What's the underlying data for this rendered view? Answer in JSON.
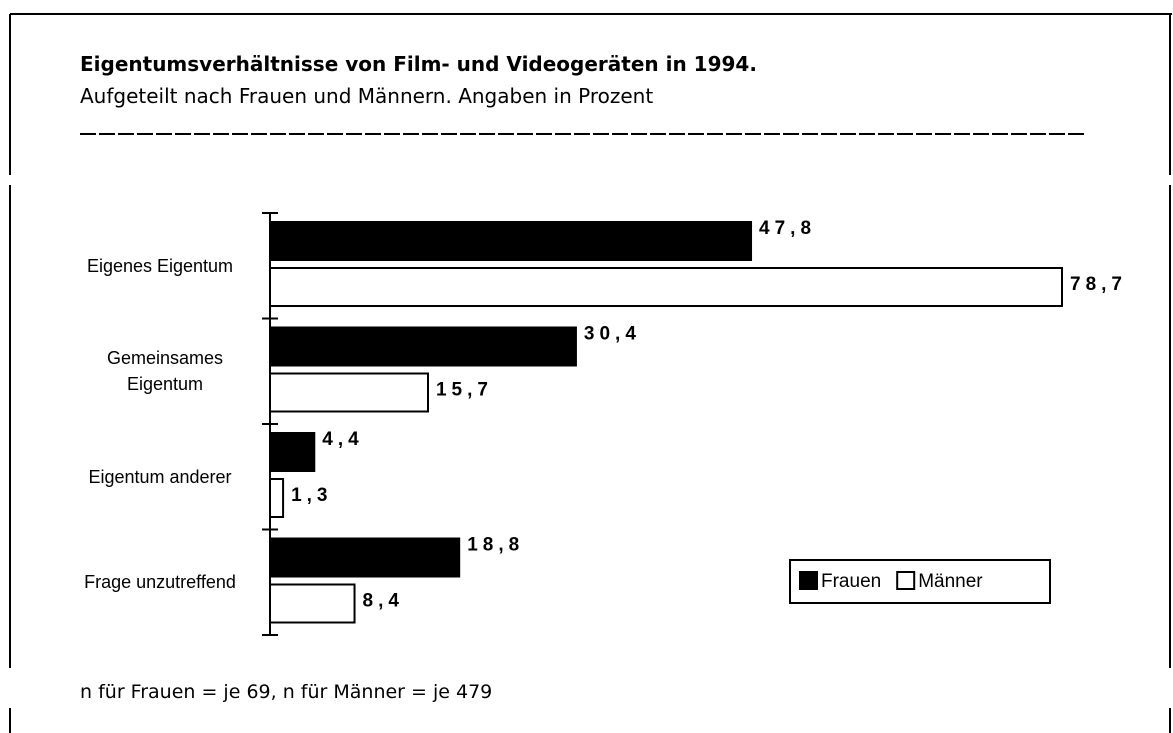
{
  "chart_data": {
    "type": "bar",
    "title": "Eigentumsverhältnisse von Film- und Videogeräten in 1994.",
    "subtitle": "Aufgeteilt nach Frauen und Männern. Angaben in Prozent",
    "categories": [
      "Eigenes Eigentum",
      "Gemeinsames Eigentum",
      "Eigentum anderer",
      "Frage unzutreffend"
    ],
    "series": [
      {
        "name": "Frauen",
        "color": "#000000",
        "values": [
          47.8,
          30.4,
          4.4,
          18.8
        ],
        "value_labels": [
          "47,8",
          "30,4",
          "4,4",
          "18,8"
        ]
      },
      {
        "name": "Männer",
        "color": "#ffffff",
        "values": [
          78.7,
          15.7,
          1.3,
          8.4
        ],
        "value_labels": [
          "78,7",
          "15,7",
          "1,3",
          "8,4"
        ]
      }
    ],
    "legend": "lower right",
    "note": "n für Frauen = je 69, n für Männer = je 479"
  }
}
